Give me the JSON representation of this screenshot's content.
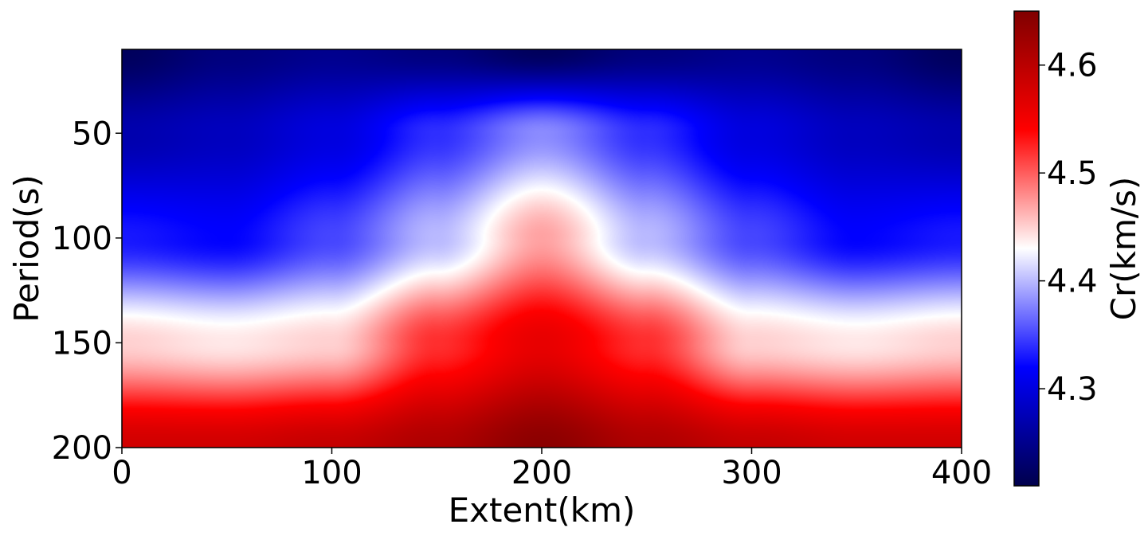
{
  "chart_data": {
    "type": "heatmap",
    "title": "",
    "xlabel": "Extent(km)",
    "ylabel": "Period(s)",
    "colorbar_label": "Cr(km/s)",
    "colormap": "seismic",
    "x_range": [
      0,
      400
    ],
    "y_range": [
      10,
      200
    ],
    "y_inverted": true,
    "x_ticks": [
      0,
      100,
      200,
      300,
      400
    ],
    "x_tick_labels": [
      "0",
      "100",
      "200",
      "300",
      "400"
    ],
    "y_ticks": [
      50,
      100,
      150,
      200
    ],
    "y_tick_labels": [
      "50",
      "100",
      "150",
      "200"
    ],
    "colorbar_range": [
      4.21,
      4.65
    ],
    "colorbar_ticks": [
      4.3,
      4.4,
      4.5,
      4.6
    ],
    "colorbar_tick_labels": [
      "4.3",
      "4.4",
      "4.5",
      "4.6"
    ],
    "grid": false,
    "velocity_field": {
      "description_x_km": [
        0,
        50,
        100,
        150,
        200,
        250,
        300,
        350,
        400
      ],
      "y_period_s": [
        10,
        50,
        100,
        150,
        200
      ],
      "values_km_s": [
        [
          4.22,
          4.24,
          4.25,
          4.24,
          4.22,
          4.24,
          4.25,
          4.24,
          4.22
        ],
        [
          4.27,
          4.28,
          4.3,
          4.34,
          4.38,
          4.34,
          4.3,
          4.28,
          4.27
        ],
        [
          4.33,
          4.32,
          4.35,
          4.4,
          4.47,
          4.4,
          4.35,
          4.32,
          4.33
        ],
        [
          4.45,
          4.44,
          4.45,
          4.52,
          4.56,
          4.52,
          4.45,
          4.44,
          4.45
        ],
        [
          4.58,
          4.58,
          4.59,
          4.61,
          4.64,
          4.61,
          4.59,
          4.58,
          4.58
        ]
      ]
    }
  }
}
